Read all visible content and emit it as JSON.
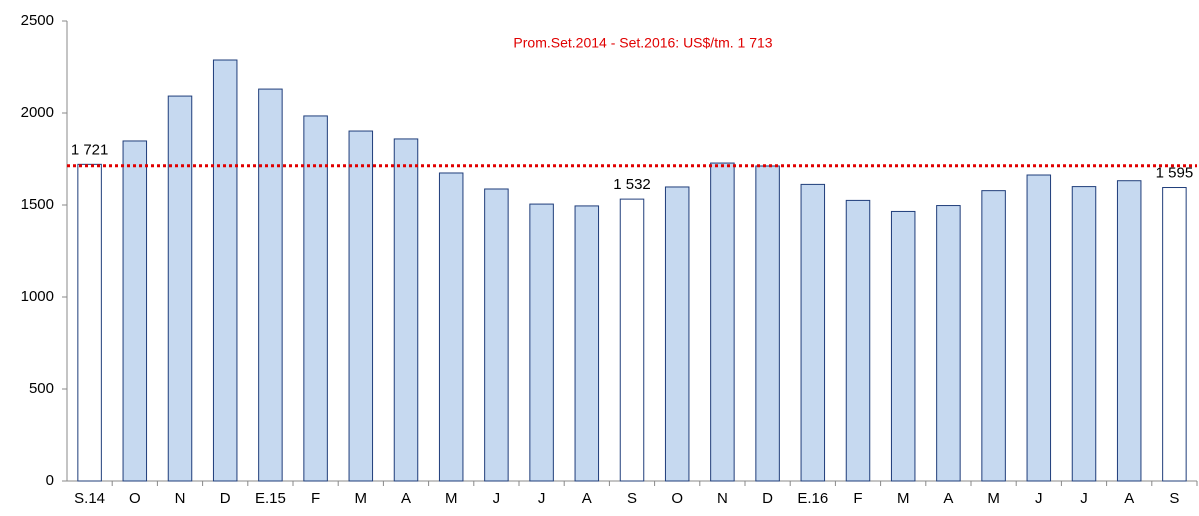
{
  "chart_data": {
    "type": "bar",
    "annotation": "Prom.Set.2014 - Set.2016: US$/tm. 1 713",
    "average": 1713,
    "average_color": "#e00000",
    "categories": [
      "S.14",
      "O",
      "N",
      "D",
      "E.15",
      "F",
      "M",
      "A",
      "M",
      "J",
      "J",
      "A",
      "S",
      "O",
      "N",
      "D",
      "E.16",
      "F",
      "M",
      "A",
      "M",
      "J",
      "J",
      "A",
      "S"
    ],
    "values": [
      1721,
      1848,
      2092,
      2288,
      2130,
      1984,
      1902,
      1859,
      1674,
      1587,
      1505,
      1495,
      1532,
      1598,
      1728,
      1712,
      1612,
      1525,
      1465,
      1497,
      1578,
      1663,
      1600,
      1632,
      1595
    ],
    "value_labels": [
      "1 721",
      null,
      null,
      null,
      null,
      null,
      null,
      null,
      null,
      null,
      null,
      null,
      "1 532",
      null,
      null,
      null,
      null,
      null,
      null,
      null,
      null,
      null,
      null,
      null,
      "1 595"
    ],
    "colors": [
      "#ffffff",
      "#c6d9f0",
      "#c6d9f0",
      "#c6d9f0",
      "#c6d9f0",
      "#c6d9f0",
      "#c6d9f0",
      "#c6d9f0",
      "#c6d9f0",
      "#c6d9f0",
      "#c6d9f0",
      "#c6d9f0",
      "#ffffff",
      "#c6d9f0",
      "#c6d9f0",
      "#c6d9f0",
      "#c6d9f0",
      "#c6d9f0",
      "#c6d9f0",
      "#c6d9f0",
      "#c6d9f0",
      "#c6d9f0",
      "#c6d9f0",
      "#c6d9f0",
      "#ffffff"
    ],
    "edge_color": "#1f3d7a",
    "ylim": [
      0,
      2500
    ],
    "yticks": [
      0,
      500,
      1000,
      1500,
      2000,
      2500
    ],
    "grid": false
  }
}
